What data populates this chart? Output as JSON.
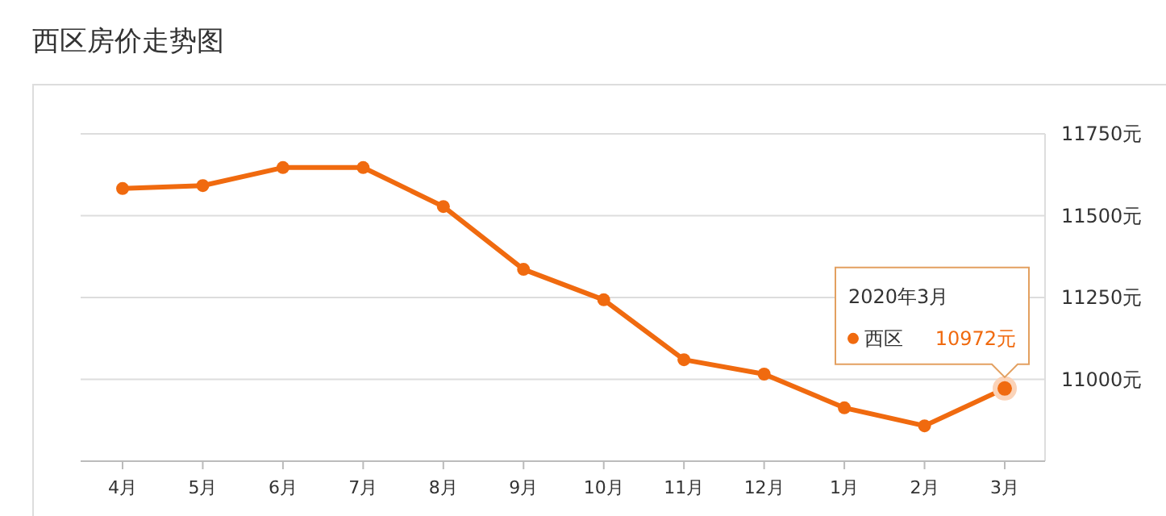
{
  "chart_data": {
    "type": "line",
    "title": "西区房价走势图",
    "categories": [
      "4月",
      "5月",
      "6月",
      "7月",
      "8月",
      "9月",
      "10月",
      "11月",
      "12月",
      "1月",
      "2月",
      "3月"
    ],
    "series": [
      {
        "name": "西区",
        "color": "#f06a0f",
        "values": [
          11583,
          11592,
          11647,
          11647,
          11528,
          11336,
          11243,
          11060,
          11016,
          10913,
          10858,
          10972
        ],
        "value_labels": [
          null,
          null,
          null,
          null,
          null,
          null,
          null,
          null,
          null,
          null,
          null,
          "10972元"
        ]
      }
    ],
    "ylim": [
      10750,
      11750
    ],
    "yticks": [
      {
        "value": 11000,
        "label": "11000元"
      },
      {
        "value": 11250,
        "label": "11250元"
      },
      {
        "value": 11500,
        "label": "11500元"
      },
      {
        "value": 11750,
        "label": "11750元"
      }
    ],
    "annotations": [
      "2020年3月"
    ],
    "grid": "y",
    "marker": "circle",
    "line_style": "solid"
  }
}
